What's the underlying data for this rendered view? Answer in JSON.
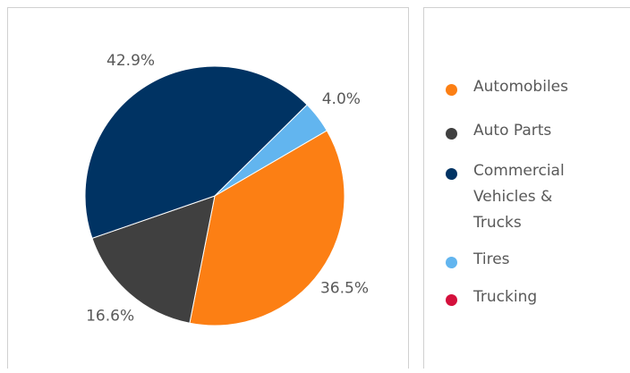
{
  "chart_data": {
    "type": "pie",
    "categories": [
      "Automobiles",
      "Auto Parts",
      "Commercial Vehicles & Trucks",
      "Tires",
      "Trucking"
    ],
    "values": [
      36.5,
      16.6,
      42.9,
      4.0,
      0
    ],
    "value_labels": [
      "36.5%",
      "16.6%",
      "42.9%",
      "4.0%",
      null
    ],
    "colors": [
      "#fc7f14",
      "#404040",
      "#003363",
      "#62b5ef",
      "#d4103c"
    ]
  }
}
